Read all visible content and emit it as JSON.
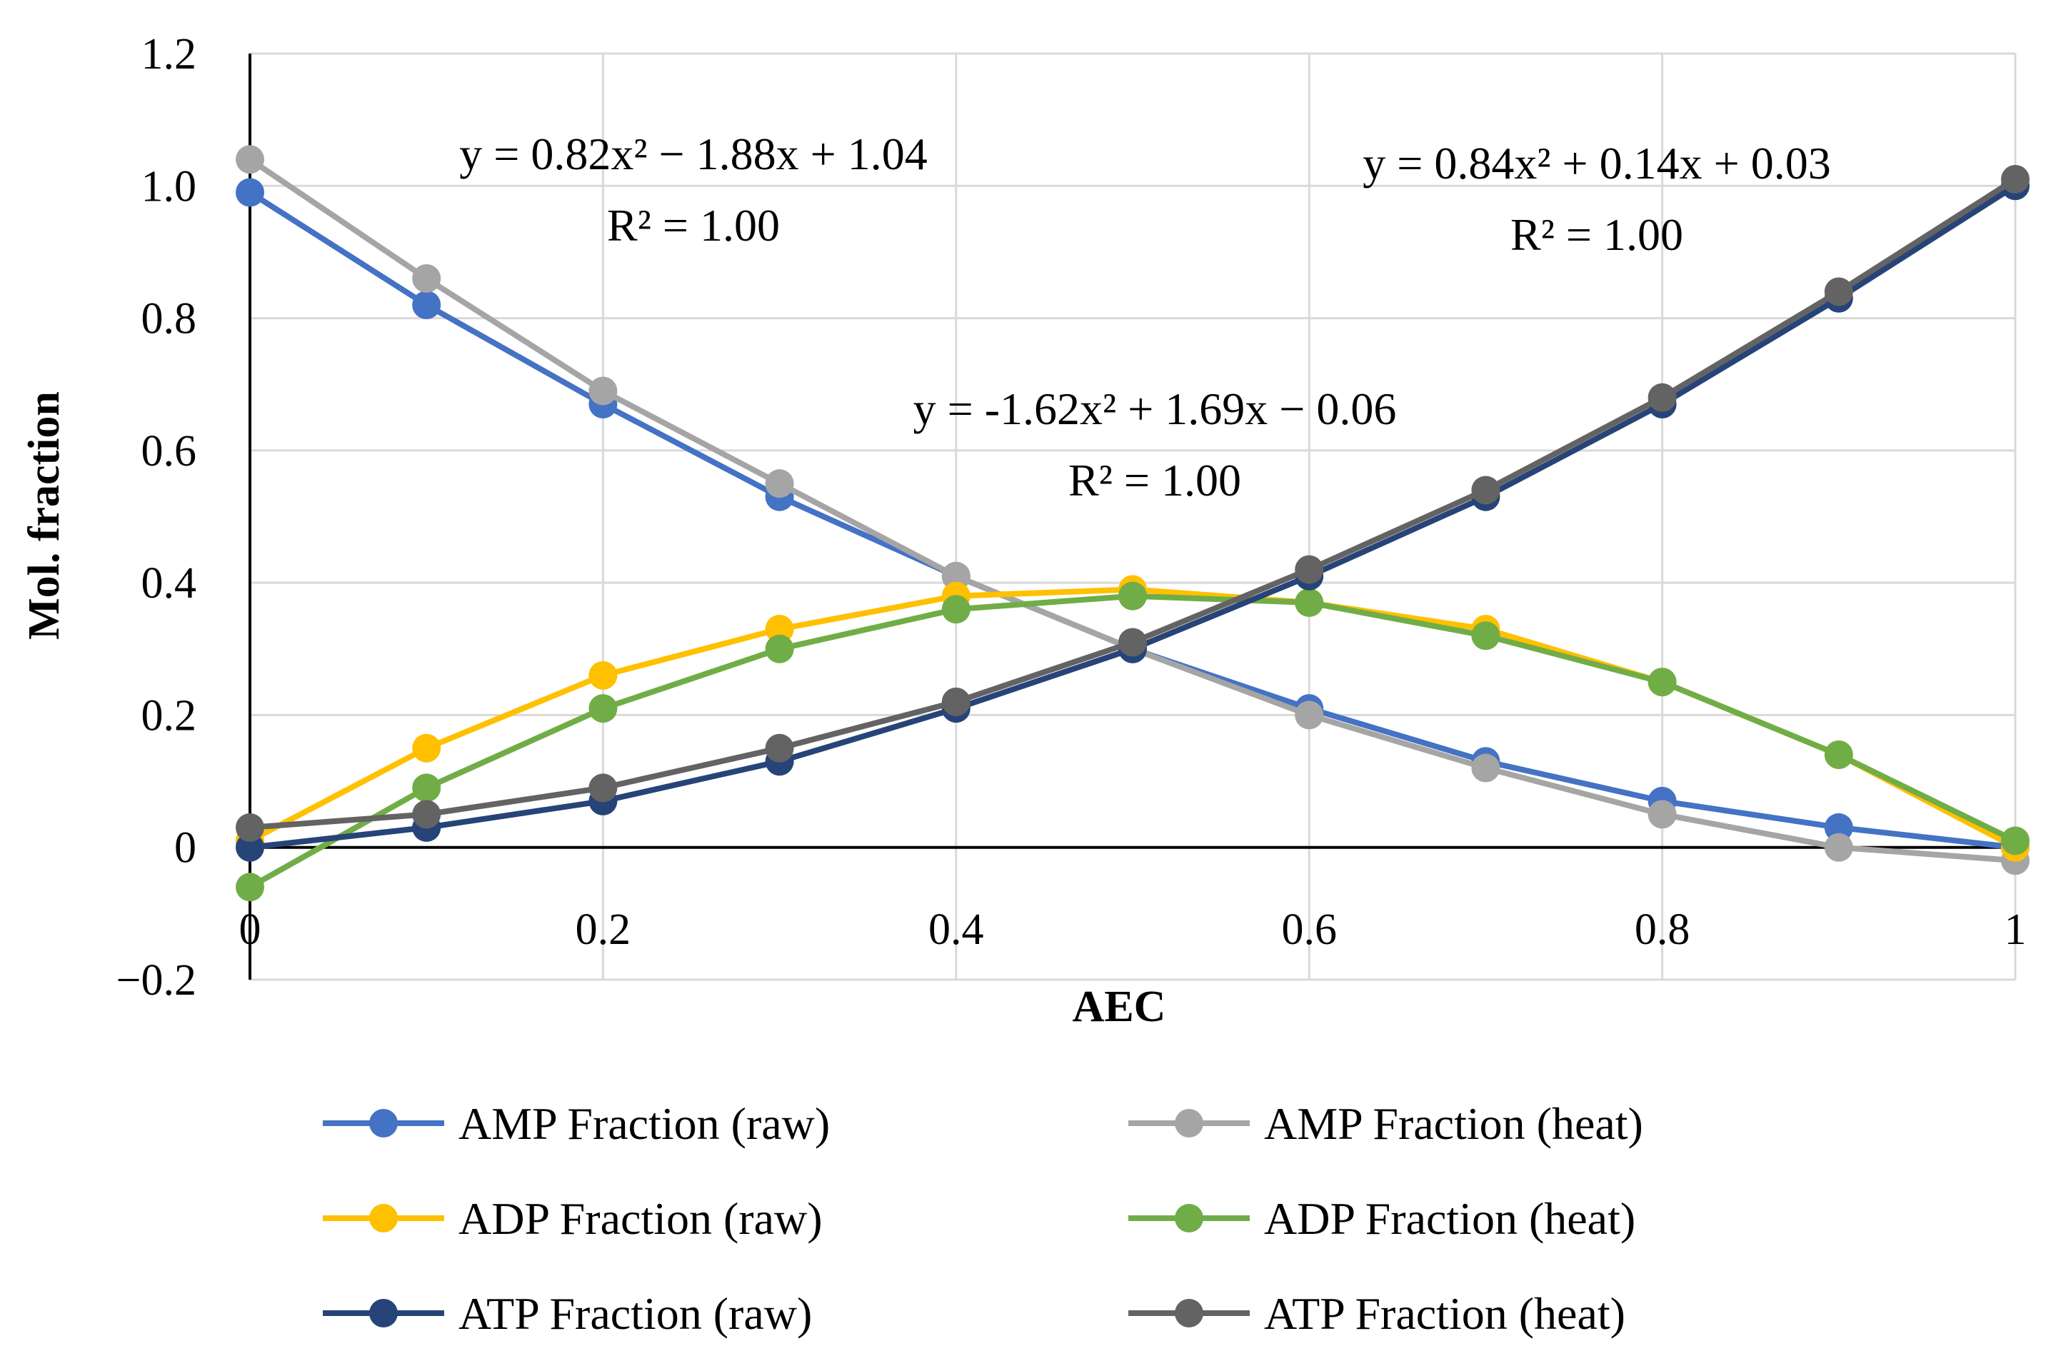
{
  "chart_data": {
    "type": "line",
    "title": "",
    "xlabel": "AEC",
    "ylabel": "Mol. fraction",
    "xlim": [
      0,
      1
    ],
    "ylim": [
      -0.2,
      1.2
    ],
    "x_ticks": [
      0,
      0.2,
      0.4,
      0.6,
      0.8,
      1
    ],
    "x_tick_labels": [
      "0",
      "0.2",
      "0.4",
      "0.6",
      "0.8",
      "1"
    ],
    "y_ticks": [
      -0.2,
      0,
      0.2,
      0.4,
      0.6,
      0.8,
      1.0,
      1.2
    ],
    "y_tick_labels": [
      "−0.2",
      "0",
      "0.2",
      "0.4",
      "0.6",
      "0.8",
      "1.0",
      "1.2"
    ],
    "grid": true,
    "legend_position": "bottom",
    "x": [
      0,
      0.1,
      0.2,
      0.3,
      0.4,
      0.5,
      0.6,
      0.7,
      0.8,
      0.9,
      1.0
    ],
    "series": [
      {
        "name": "AMP Fraction (raw)",
        "color": "#4472c4",
        "values": [
          0.99,
          0.82,
          0.67,
          0.53,
          0.41,
          0.3,
          0.21,
          0.13,
          0.07,
          0.03,
          0.0
        ]
      },
      {
        "name": "AMP Fraction (heat)",
        "color": "#a5a5a5",
        "values": [
          1.04,
          0.86,
          0.69,
          0.55,
          0.41,
          0.3,
          0.2,
          0.12,
          0.05,
          0.0,
          -0.02
        ]
      },
      {
        "name": "ADP Fraction (raw)",
        "color": "#ffc000",
        "values": [
          0.01,
          0.15,
          0.26,
          0.33,
          0.38,
          0.39,
          0.37,
          0.33,
          0.25,
          0.14,
          0.0
        ]
      },
      {
        "name": "ADP Fraction (heat)",
        "color": "#70ad47",
        "values": [
          -0.06,
          0.09,
          0.21,
          0.3,
          0.36,
          0.38,
          0.37,
          0.32,
          0.25,
          0.14,
          0.01
        ]
      },
      {
        "name": "ATP Fraction (raw)",
        "color": "#264478",
        "values": [
          0.0,
          0.03,
          0.07,
          0.13,
          0.21,
          0.3,
          0.41,
          0.53,
          0.67,
          0.83,
          1.0
        ]
      },
      {
        "name": "ATP Fraction (heat)",
        "color": "#636363",
        "values": [
          0.03,
          0.05,
          0.09,
          0.15,
          0.22,
          0.31,
          0.42,
          0.54,
          0.68,
          0.84,
          1.01
        ]
      }
    ],
    "annotations": [
      {
        "eq": "y = 0.82x² − 1.88x + 1.04",
        "r2": "R² = 1.00"
      },
      {
        "eq": "y = 0.84x² + 0.14x + 0.03",
        "r2": "R² = 1.00"
      },
      {
        "eq": "y = -1.62x² + 1.69x − 0.06",
        "r2": "R² = 1.00"
      }
    ]
  }
}
